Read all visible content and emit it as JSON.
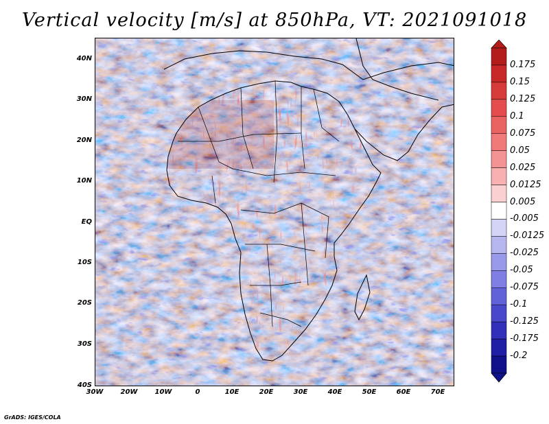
{
  "title": "Vertical velocity [m/s] at 850hPa, VT: 2021091018",
  "credit": "GrADS: IGES/COLA",
  "map": {
    "lon_range": [
      -30,
      75
    ],
    "lat_range": [
      -40,
      45
    ],
    "lat_ticks": [
      "40N",
      "30N",
      "20N",
      "10N",
      "EQ",
      "10S",
      "20S",
      "30S",
      "40S"
    ],
    "lon_ticks": [
      "30W",
      "20W",
      "10W",
      "0",
      "10E",
      "20E",
      "30E",
      "40E",
      "50E",
      "60E",
      "70E"
    ]
  },
  "colorbar": {
    "labels": [
      "0.175",
      "0.15",
      "0.125",
      "0.1",
      "0.075",
      "0.05",
      "0.025",
      "0.0125",
      "0.005",
      "-0.005",
      "-0.0125",
      "-0.025",
      "-0.05",
      "-0.075",
      "-0.1",
      "-0.125",
      "-0.175",
      "-0.2"
    ],
    "colors": [
      "#b41b1b",
      "#c92828",
      "#d83a3a",
      "#e34d4d",
      "#ea6262",
      "#f07979",
      "#f49393",
      "#f8b0b0",
      "#fbd0d0",
      "#ffffff",
      "#d4d4f6",
      "#b7b7f0",
      "#9a9aea",
      "#7e7ee3",
      "#6262d8",
      "#4848cc",
      "#3030bb",
      "#1e1ea6",
      "#101088"
    ]
  }
}
